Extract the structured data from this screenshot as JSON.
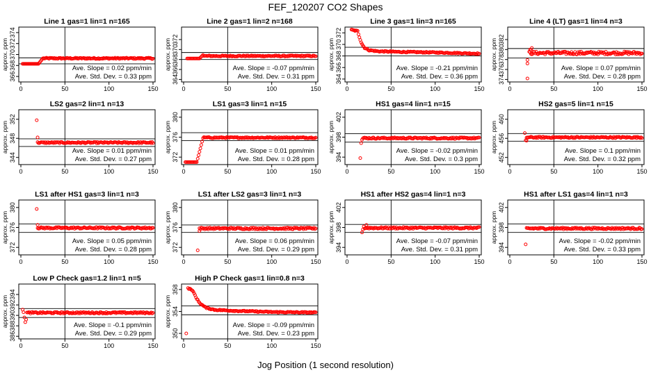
{
  "title": "FEF_120207  CO2 Shapes",
  "xlabel": "Jog Position (1 second resolution)",
  "colors": {
    "points": "#ff0000",
    "lines": "#000000"
  },
  "chart_data": [
    {
      "type": "scatter",
      "title": "Line 1 gas=1 lin=1 n=165",
      "ylabel": "approx. ppm",
      "xlim": [
        0,
        150
      ],
      "ylim": [
        365,
        375
      ],
      "yticks": [
        366,
        368,
        370,
        372,
        374
      ],
      "xticks": [
        0,
        50,
        100,
        150
      ],
      "hlines": [
        369.4,
        368.3
      ],
      "vline": 50,
      "slope": "Ave. Slope = 0.02  ppm/min",
      "stddev": "Ave. Std. Dev. = 0.33  ppm",
      "shape": {
        "pre": [
          [
            0,
            368.3
          ],
          [
            20,
            368.3
          ]
        ],
        "rise": [
          [
            20,
            368.3
          ],
          [
            25,
            369.3
          ]
        ],
        "level": 369.3,
        "noise": 0.12,
        "start": 2,
        "end": 150
      }
    },
    {
      "type": "scatter",
      "title": "Line 2 gas=1 lin=2 n=168",
      "ylabel": "approx. ppm",
      "xlim": [
        0,
        150
      ],
      "ylim": [
        363.5,
        374.5
      ],
      "yticks": [
        364,
        366,
        368,
        370,
        372
      ],
      "xticks": [
        0,
        50,
        100,
        150
      ],
      "hlines": [
        369.4,
        368.0
      ],
      "vline": 50,
      "slope": "Ave. Slope = -0.07  ppm/min",
      "stddev": "Ave. Std. Dev. = 0.31  ppm",
      "shape": {
        "pre": [
          [
            4,
            368.2
          ],
          [
            18,
            368.2
          ]
        ],
        "rise": [
          [
            18,
            368.2
          ],
          [
            22,
            368.9
          ]
        ],
        "level": 368.7,
        "noise": 0.12,
        "start": 4,
        "end": 150
      }
    },
    {
      "type": "scatter",
      "title": "Line 3 gas=1 lin=3 n=165",
      "ylabel": "approx. ppm",
      "xlim": [
        0,
        150
      ],
      "ylim": [
        363.5,
        373
      ],
      "yticks": [
        364,
        366,
        368,
        370,
        372
      ],
      "xticks": [
        0,
        50,
        100,
        150
      ],
      "hlines": [
        369.5,
        368.0
      ],
      "vline": 50,
      "slope": "Ave. Slope = -0.21  ppm/min",
      "stddev": "Ave. Std. Dev. = 0.36  ppm",
      "decay": {
        "points": [
          [
            5,
            372.5
          ],
          [
            12,
            372.3
          ],
          [
            14,
            371.3
          ],
          [
            16,
            370.4
          ],
          [
            18,
            369.8
          ],
          [
            20,
            369.4
          ],
          [
            25,
            369.0
          ],
          [
            35,
            368.8
          ],
          [
            60,
            368.7
          ],
          [
            100,
            368.6
          ],
          [
            150,
            368.4
          ]
        ]
      },
      "noise": 0.1
    },
    {
      "type": "scatter",
      "title": "Line 4 (LT) gas=1 lin=4 n=3",
      "ylabel": "approx. ppm",
      "xlim": [
        0,
        150
      ],
      "ylim": [
        373.5,
        384.5
      ],
      "yticks": [
        374,
        376,
        378,
        380,
        382
      ],
      "xticks": [
        0,
        50,
        100,
        150
      ],
      "hlines": [
        380.2,
        378.3
      ],
      "vline": 50,
      "slope": "Ave. Slope = 0.07  ppm/min",
      "stddev": "Ave. Std. Dev. = 0.28  ppm",
      "outliers": [
        [
          20,
          374.2
        ],
        [
          20,
          377.2
        ],
        [
          20,
          377.9
        ],
        [
          23,
          380.0
        ],
        [
          25,
          380.3
        ],
        [
          24,
          379.9
        ]
      ],
      "shape": {
        "level": 379.3,
        "noise": 0.3,
        "start": 22,
        "end": 150
      }
    },
    {
      "type": "scatter",
      "title": "LS2 gas=2 lin=1 n=13",
      "ylabel": "approx. ppm",
      "xlim": [
        0,
        150
      ],
      "ylim": [
        342.5,
        354
      ],
      "yticks": [
        344,
        348,
        352
      ],
      "xticks": [
        0,
        50,
        100,
        150
      ],
      "hlines": [
        347.9,
        346.3
      ],
      "vline": 50,
      "slope": "Ave. Slope = 0.01  ppm/min",
      "stddev": "Ave. Std. Dev. = 0.27  ppm",
      "outliers": [
        [
          18,
          351.8
        ],
        [
          19,
          348.2
        ]
      ],
      "shape": {
        "level": 347.1,
        "noise": 0.15,
        "start": 19,
        "end": 150
      }
    },
    {
      "type": "scatter",
      "title": "LS1 gas=3 lin=1 n=15",
      "ylabel": "approx. ppm",
      "xlim": [
        0,
        150
      ],
      "ylim": [
        370.5,
        381.5
      ],
      "yticks": [
        372,
        376,
        380
      ],
      "xticks": [
        0,
        50,
        100,
        150
      ],
      "hlines": [
        376.9,
        375.3
      ],
      "vline": 50,
      "slope": "Ave. Slope = 0.01  ppm/min",
      "stddev": "Ave. Std. Dev. = 0.28  ppm",
      "shape": {
        "pre": [
          [
            2,
            371.0
          ],
          [
            15,
            371.0
          ]
        ],
        "rise": [
          [
            15,
            371.0
          ],
          [
            22,
            375.8
          ]
        ],
        "level": 375.9,
        "noise": 0.12,
        "start": 2,
        "end": 150
      }
    },
    {
      "type": "scatter",
      "title": "HS1 gas=4 lin=1 n=15",
      "ylabel": "approx. ppm",
      "xlim": [
        0,
        150
      ],
      "ylim": [
        392.5,
        403.5
      ],
      "yticks": [
        394,
        398,
        402
      ],
      "xticks": [
        0,
        50,
        100,
        150
      ],
      "hlines": [
        398.7,
        397.0
      ],
      "vline": 50,
      "slope": "Ave. Slope = -0.02  ppm/min",
      "stddev": "Ave. Std. Dev. = 0.3  ppm",
      "outliers": [
        [
          15,
          393.8
        ],
        [
          16,
          396.8
        ],
        [
          17,
          397.5
        ]
      ],
      "shape": {
        "level": 397.8,
        "noise": 0.15,
        "start": 18,
        "end": 150
      }
    },
    {
      "type": "scatter",
      "title": "HS2 gas=5 lin=1 n=15",
      "ylabel": "approx. ppm",
      "xlim": [
        0,
        150
      ],
      "ylim": [
        450.5,
        462
      ],
      "yticks": [
        452,
        456,
        460
      ],
      "xticks": [
        0,
        50,
        100,
        150
      ],
      "hlines": [
        457.0,
        455.4
      ],
      "vline": 50,
      "slope": "Ave. Slope = 0.1  ppm/min",
      "stddev": "Ave. Std. Dev. = 0.32  ppm",
      "outliers": [
        [
          17,
          457.1
        ],
        [
          18,
          455.6
        ],
        [
          19,
          455.5
        ]
      ],
      "shape": {
        "level": 456.2,
        "noise": 0.15,
        "start": 19,
        "end": 150
      }
    },
    {
      "type": "scatter",
      "title": "LS1 after HS1 gas=3 lin=1 n=3",
      "ylabel": "approx. ppm",
      "xlim": [
        0,
        150
      ],
      "ylim": [
        370.5,
        381.5
      ],
      "yticks": [
        372,
        376,
        380
      ],
      "xticks": [
        0,
        50,
        100,
        150
      ],
      "hlines": [
        376.7,
        375.0
      ],
      "vline": 50,
      "slope": "Ave. Slope = 0.05  ppm/min",
      "stddev": "Ave. Std. Dev. = 0.28  ppm",
      "outliers": [
        [
          18,
          379.7
        ],
        [
          19,
          376.5
        ]
      ],
      "shape": {
        "level": 375.9,
        "noise": 0.17,
        "start": 19,
        "end": 150
      }
    },
    {
      "type": "scatter",
      "title": "LS1 after LS2 gas=3 lin=1 n=3",
      "ylabel": "approx. ppm",
      "xlim": [
        0,
        150
      ],
      "ylim": [
        370.5,
        381.5
      ],
      "yticks": [
        372,
        376,
        380
      ],
      "xticks": [
        0,
        50,
        100,
        150
      ],
      "hlines": [
        376.5,
        375.0
      ],
      "vline": 50,
      "slope": "Ave. Slope = 0.06  ppm/min",
      "stddev": "Ave. Std. Dev. = 0.29  ppm",
      "outliers": [
        [
          16,
          371.4
        ],
        [
          18,
          375.3
        ]
      ],
      "shape": {
        "level": 375.8,
        "noise": 0.17,
        "start": 18,
        "end": 150
      }
    },
    {
      "type": "scatter",
      "title": "HS1 after HS2 gas=4 lin=1 n=3",
      "ylabel": "approx. ppm",
      "xlim": [
        0,
        150
      ],
      "ylim": [
        392.5,
        403.5
      ],
      "yticks": [
        394,
        398,
        402
      ],
      "xticks": [
        0,
        50,
        100,
        150
      ],
      "hlines": [
        398.6,
        397.0
      ],
      "vline": 50,
      "slope": "Ave. Slope = -0.07  ppm/min",
      "stddev": "Ave. Std. Dev. = 0.31  ppm",
      "outliers": [
        [
          17,
          397.0
        ],
        [
          18,
          397.6
        ],
        [
          19,
          398.2
        ],
        [
          22,
          398.5
        ]
      ],
      "shape": {
        "level": 397.9,
        "noise": 0.17,
        "start": 20,
        "end": 150
      }
    },
    {
      "type": "scatter",
      "title": "HS1 after LS1 gas=4 lin=1 n=3",
      "ylabel": "approx. ppm",
      "xlim": [
        0,
        150
      ],
      "ylim": [
        392.5,
        403.5
      ],
      "yticks": [
        394,
        398,
        402
      ],
      "xticks": [
        0,
        50,
        100,
        150
      ],
      "hlines": [
        398.7,
        397.0
      ],
      "vline": 50,
      "slope": "Ave. Slope = -0.02  ppm/min",
      "stddev": "Ave. Std. Dev. = 0.33  ppm",
      "outliers": [
        [
          18,
          394.6
        ]
      ],
      "shape": {
        "level": 397.8,
        "noise": 0.17,
        "start": 19,
        "end": 150
      }
    },
    {
      "type": "scatter",
      "title": "Low P Check gas=1.2 lin=1 n=5",
      "ylabel": "approx. ppm",
      "xlim": [
        0,
        150
      ],
      "ylim": [
        385.5,
        396
      ],
      "yticks": [
        386,
        388,
        390,
        392,
        394
      ],
      "xticks": [
        0,
        50,
        100,
        150
      ],
      "hlines": [
        391.3,
        389.6
      ],
      "vline": 50,
      "slope": "Ave. Slope = -0.1  ppm/min",
      "stddev": "Ave. Std. Dev. = 0.29  ppm",
      "outliers": [
        [
          2,
          391.1
        ],
        [
          3,
          390.6
        ],
        [
          4,
          389.6
        ],
        [
          5,
          388.7
        ],
        [
          6,
          389.2
        ]
      ],
      "shape": {
        "level": 390.5,
        "noise": 0.15,
        "start": 7,
        "end": 150
      }
    },
    {
      "type": "scatter",
      "title": "High P Check gas=1 lin=0.8 n=3",
      "ylabel": "approx. ppm",
      "xlim": [
        0,
        150
      ],
      "ylim": [
        349,
        359
      ],
      "yticks": [
        350,
        354,
        358
      ],
      "xticks": [
        0,
        50,
        100,
        150
      ],
      "hlines": [
        355.0,
        353.4
      ],
      "vline": 50,
      "slope": "Ave. Slope = -0.09  ppm/min",
      "stddev": "Ave. Std. Dev. = 0.23  ppm",
      "outliers": [
        [
          3,
          350.0
        ]
      ],
      "decay": {
        "points": [
          [
            5,
            358.2
          ],
          [
            9,
            358.0
          ],
          [
            12,
            357.3
          ],
          [
            14,
            356.6
          ],
          [
            17,
            355.8
          ],
          [
            20,
            355.3
          ],
          [
            25,
            354.7
          ],
          [
            35,
            354.3
          ],
          [
            60,
            354.1
          ],
          [
            100,
            353.9
          ],
          [
            150,
            353.8
          ]
        ]
      },
      "noise": 0.1
    }
  ]
}
